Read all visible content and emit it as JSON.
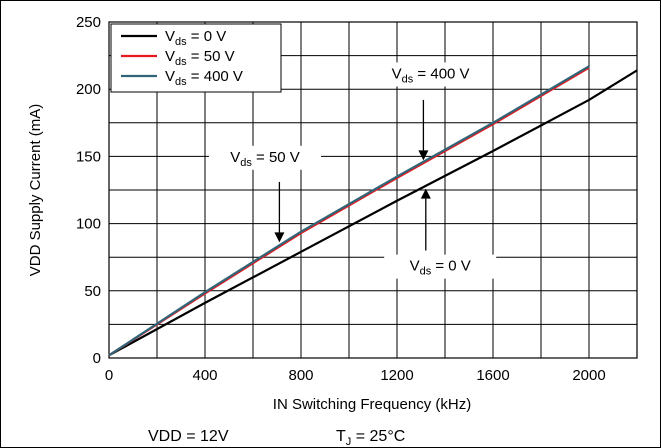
{
  "chart_data": {
    "type": "line",
    "xlabel": "IN Switching Frequency (kHz)",
    "ylabel": "VDD Supply Current (mA)",
    "xlim": [
      0,
      2200
    ],
    "ylim": [
      0,
      250
    ],
    "x_ticks": [
      0,
      400,
      800,
      1200,
      1600,
      2000
    ],
    "y_ticks": [
      0,
      50,
      100,
      150,
      200,
      250
    ],
    "grid": true,
    "legend_position": "top-left",
    "series": [
      {
        "name": "0 V",
        "label_main": "V",
        "label_sub": "ds",
        "label_rest": " = 0 V",
        "color": "#000000",
        "x": [
          0,
          400,
          800,
          1200,
          1600,
          2000,
          2200
        ],
        "y": [
          2,
          41,
          79,
          117,
          154,
          192,
          214
        ]
      },
      {
        "name": "50 V",
        "label_main": "V",
        "label_sub": "ds",
        "label_rest": " = 50 V",
        "color": "#e8191f",
        "x": [
          0,
          400,
          800,
          1200,
          1600,
          2000
        ],
        "y": [
          2,
          48,
          93,
          134,
          174,
          216
        ]
      },
      {
        "name": "400 V",
        "label_main": "V",
        "label_sub": "ds",
        "label_rest": " = 400 V",
        "color": "#2f6577",
        "x": [
          0,
          400,
          800,
          1200,
          1600,
          2000
        ],
        "y": [
          2,
          49,
          94,
          135,
          175,
          217
        ]
      }
    ],
    "annotations": [
      {
        "main": "V",
        "sub": "ds",
        "rest": " = 400 V",
        "arrow_x": 1310,
        "arrow_from": 192,
        "arrow_to": 147,
        "text_x": 1340,
        "text_y": 208,
        "anchor": "middle"
      },
      {
        "main": "V",
        "sub": "ds",
        "rest": " = 50 V",
        "arrow_x": 710,
        "arrow_from": 131,
        "arrow_to": 86,
        "text_x": 650,
        "text_y": 146,
        "anchor": "middle"
      },
      {
        "main": "V",
        "sub": "ds",
        "rest": " = 0 V",
        "arrow_x": 1320,
        "arrow_from": 80,
        "arrow_to": 126,
        "text_x": 1380,
        "text_y": 65,
        "anchor": "middle"
      }
    ]
  },
  "conditions": {
    "vdd": "VDD = 12V",
    "tj_main": "T",
    "tj_sub": "J",
    "tj_rest": " = 25°C"
  }
}
